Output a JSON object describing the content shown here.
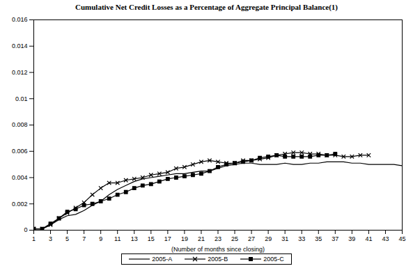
{
  "chart_data": {
    "type": "line",
    "title": "Cumulative Net Credit Losses as a Percentage of Aggregate Principal Balance(1)",
    "x_label": "(Number of months since closing)",
    "x": [
      1,
      2,
      3,
      4,
      5,
      6,
      7,
      8,
      9,
      10,
      11,
      12,
      13,
      14,
      15,
      16,
      17,
      18,
      19,
      20,
      21,
      22,
      23,
      24,
      25,
      26,
      27,
      28,
      29,
      30,
      31,
      32,
      33,
      34,
      35,
      36,
      37,
      38,
      39,
      40,
      41,
      42,
      43,
      44,
      45
    ],
    "xlim": [
      1,
      45
    ],
    "xticks": [
      1,
      3,
      5,
      7,
      9,
      11,
      13,
      15,
      17,
      19,
      21,
      23,
      25,
      27,
      29,
      31,
      33,
      35,
      37,
      39,
      41,
      43,
      45
    ],
    "ylim": [
      0,
      0.016
    ],
    "yticks": [
      0,
      0.002,
      0.004,
      0.006,
      0.008,
      0.01,
      0.012,
      0.014,
      0.016
    ],
    "grid": false,
    "legend": "bottom",
    "series": [
      {
        "name": "2005-A",
        "color": "#000000",
        "marker": "none",
        "values": [
          0.0001,
          0.0001,
          0.0004,
          0.0008,
          0.0011,
          0.0012,
          0.0015,
          0.0019,
          0.0022,
          0.0027,
          0.0031,
          0.0034,
          0.0037,
          0.0039,
          0.004,
          0.0041,
          0.0042,
          0.0043,
          0.0043,
          0.0044,
          0.0045,
          0.0045,
          0.0047,
          0.0049,
          0.005,
          0.0051,
          0.0051,
          0.005,
          0.005,
          0.005,
          0.0051,
          0.005,
          0.005,
          0.0051,
          0.0051,
          0.0052,
          0.0052,
          0.0052,
          0.0051,
          0.0051,
          0.005,
          0.005,
          0.005,
          0.005,
          0.0049
        ]
      },
      {
        "name": "2005-B",
        "color": "#000000",
        "marker": "x",
        "values": [
          0.0001,
          0.0001,
          0.0004,
          0.0009,
          0.0013,
          0.0017,
          0.0021,
          0.0027,
          0.0032,
          0.0036,
          0.0036,
          0.0038,
          0.0039,
          0.004,
          0.0042,
          0.0043,
          0.0044,
          0.0047,
          0.0048,
          0.005,
          0.0052,
          0.0053,
          0.0052,
          0.0051,
          0.0051,
          0.0053,
          0.0053,
          0.0054,
          0.0055,
          0.0057,
          0.0058,
          0.0059,
          0.0059,
          0.0058,
          0.0058,
          0.0057,
          0.0057,
          0.0056,
          0.0056,
          0.0057,
          0.0057,
          null,
          null,
          null,
          null
        ]
      },
      {
        "name": "2005-C",
        "color": "#000000",
        "marker": "square",
        "values": [
          0.0001,
          0.0001,
          0.0005,
          0.0009,
          0.0014,
          0.0016,
          0.0019,
          0.002,
          0.0022,
          0.0024,
          0.0027,
          0.0029,
          0.0032,
          0.0034,
          0.0035,
          0.0037,
          0.0039,
          0.004,
          0.0041,
          0.0042,
          0.0043,
          0.0045,
          0.0048,
          0.005,
          0.0051,
          0.0052,
          0.0053,
          0.0055,
          0.0056,
          0.0057,
          0.0056,
          0.0056,
          0.0056,
          0.0056,
          0.0057,
          0.0057,
          0.0058,
          null,
          null,
          null,
          null,
          null,
          null,
          null,
          null
        ]
      }
    ]
  }
}
